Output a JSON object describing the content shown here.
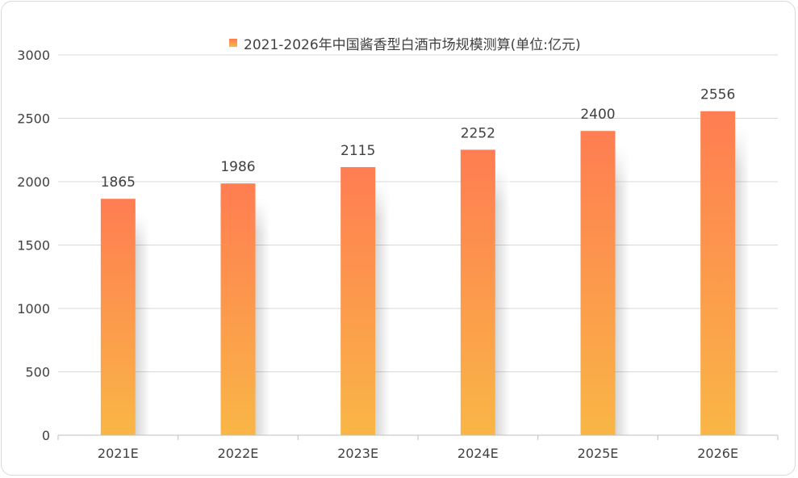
{
  "chart_data": {
    "type": "bar",
    "title": "2021-2026年中国酱香型白酒市场规模测算(单位:亿元)",
    "legend_position": "top-center",
    "categories": [
      "2021E",
      "2022E",
      "2023E",
      "2024E",
      "2025E",
      "2026E"
    ],
    "series": [
      {
        "name": "2021-2026年中国酱香型白酒市场规模测算(单位:亿元)",
        "values": [
          1865,
          1986,
          2115,
          2252,
          2400,
          2556
        ]
      }
    ],
    "ylim": [
      0,
      3000
    ],
    "yticks": [
      "0",
      "500",
      "1000",
      "1500",
      "2000",
      "2500",
      "3000"
    ],
    "grid": true,
    "colors": {
      "bar_top": "#ff7d52",
      "bar_bottom": "#f9b646",
      "gridline": "#d9d9d9",
      "axis": "#bfbfbf",
      "text": "#404040"
    }
  }
}
